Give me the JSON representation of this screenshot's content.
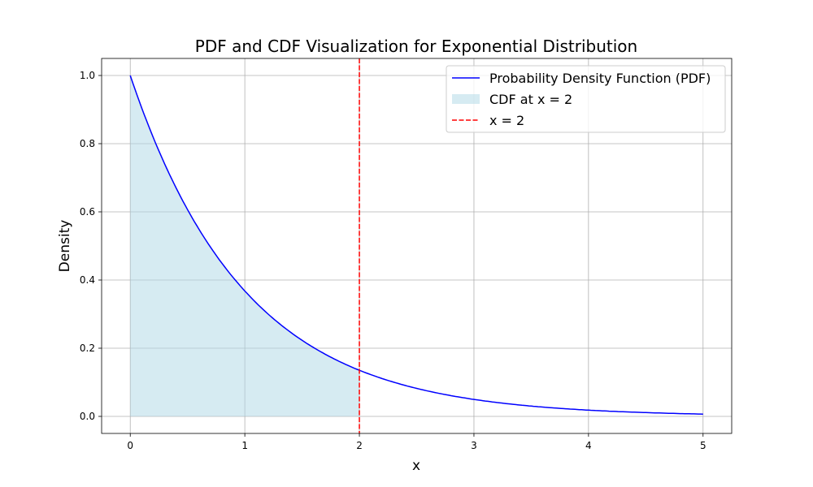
{
  "chart_data": {
    "type": "line",
    "title": "PDF and CDF Visualization for Exponential Distribution",
    "xlabel": "x",
    "ylabel": "Density",
    "xlim": [
      -0.25,
      5.25
    ],
    "ylim": [
      -0.05,
      1.05
    ],
    "xticks": [
      0,
      1,
      2,
      3,
      4,
      5
    ],
    "xtick_labels": [
      "0",
      "1",
      "2",
      "3",
      "4",
      "5"
    ],
    "yticks": [
      0.0,
      0.2,
      0.4,
      0.6,
      0.8,
      1.0
    ],
    "ytick_labels": [
      "0.0",
      "0.2",
      "0.4",
      "0.6",
      "0.8",
      "1.0"
    ],
    "grid": true,
    "legend_position": "top-right",
    "series": [
      {
        "name": "Probability Density Function (PDF)",
        "kind": "line",
        "color": "#0000ff",
        "x": [
          0,
          0.2,
          0.4,
          0.6,
          0.8,
          1,
          1.2,
          1.4,
          1.6,
          1.8,
          2,
          2.2,
          2.4,
          2.6,
          2.8,
          3,
          3.2,
          3.4,
          3.6,
          3.8,
          4,
          4.2,
          4.4,
          4.6,
          4.8,
          5
        ],
        "y": [
          1,
          0.8187,
          0.6703,
          0.5488,
          0.4493,
          0.3679,
          0.3012,
          0.2466,
          0.2019,
          0.1653,
          0.1353,
          0.1108,
          0.0907,
          0.0743,
          0.0608,
          0.0498,
          0.0408,
          0.0334,
          0.0273,
          0.0224,
          0.0183,
          0.015,
          0.0123,
          0.0101,
          0.0082,
          0.0067
        ]
      },
      {
        "name": "CDF at x = 2",
        "kind": "fill",
        "color": "#add8e6",
        "x_range": [
          0,
          2
        ]
      },
      {
        "name": "x = 2",
        "kind": "vline",
        "color": "#ff0000",
        "x": 2
      }
    ]
  }
}
